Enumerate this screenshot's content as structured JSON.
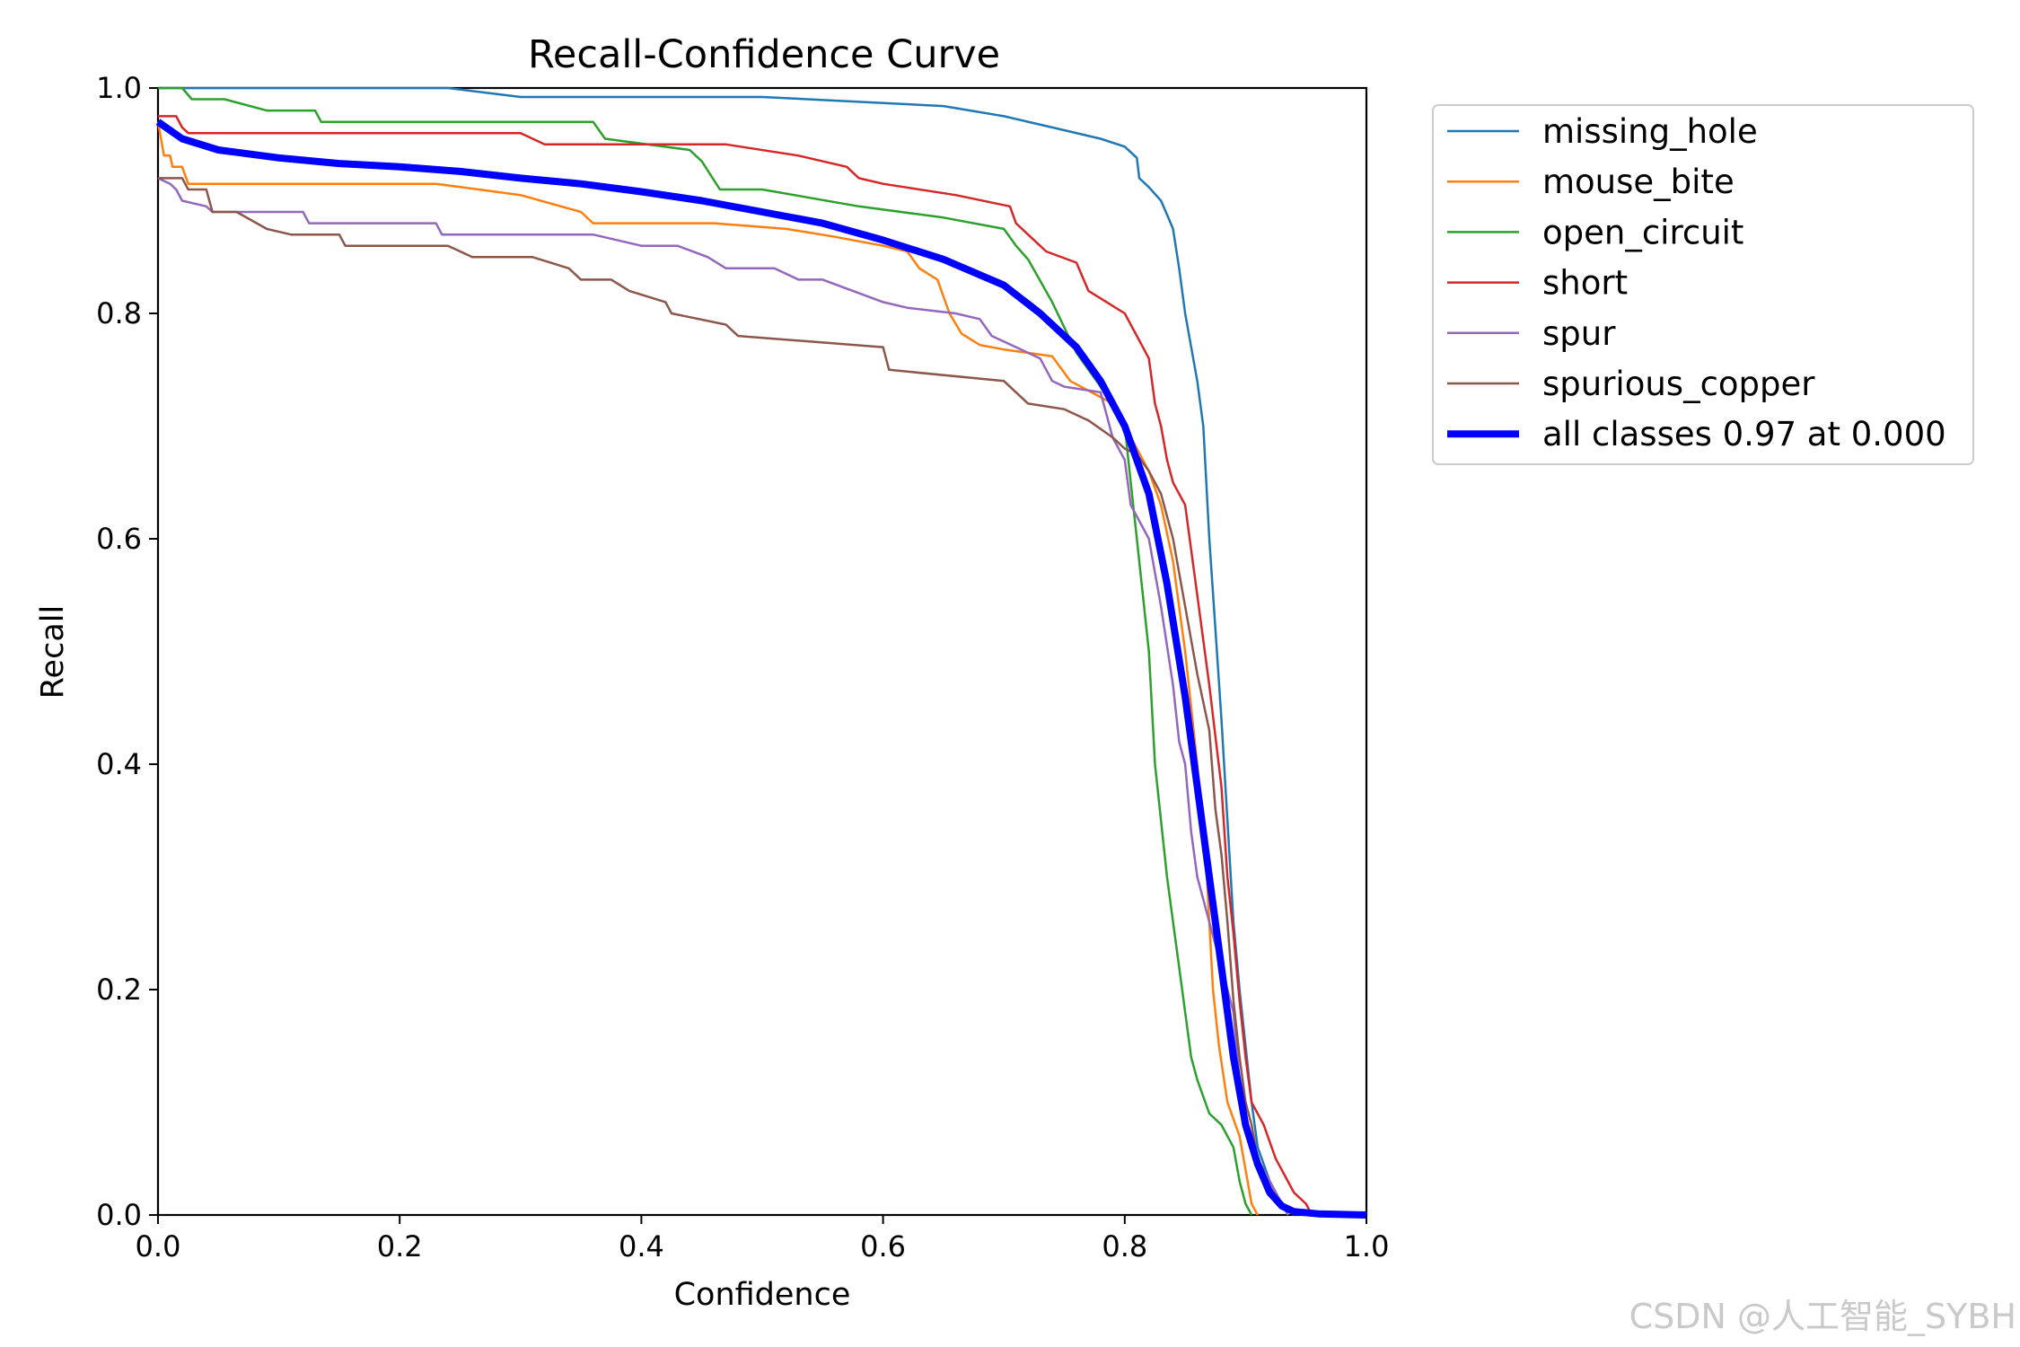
{
  "chart_data": {
    "type": "line",
    "title": "Recall-Confidence Curve",
    "xlabel": "Confidence",
    "ylabel": "Recall",
    "xlim": [
      0,
      1
    ],
    "ylim": [
      0,
      1
    ],
    "xticks": [
      "0.0",
      "0.2",
      "0.4",
      "0.6",
      "0.8",
      "1.0"
    ],
    "yticks": [
      "0.0",
      "0.2",
      "0.4",
      "0.6",
      "0.8",
      "1.0"
    ],
    "grid": false,
    "legend_position": "outside top-right",
    "series": [
      {
        "name": "missing_hole",
        "color": "#1f77b4",
        "width": 2.5,
        "points": [
          [
            0,
            1.0
          ],
          [
            0.24,
            1.0
          ],
          [
            0.3,
            0.992
          ],
          [
            0.5,
            0.992
          ],
          [
            0.65,
            0.984
          ],
          [
            0.7,
            0.975
          ],
          [
            0.74,
            0.965
          ],
          [
            0.78,
            0.955
          ],
          [
            0.8,
            0.948
          ],
          [
            0.81,
            0.938
          ],
          [
            0.812,
            0.92
          ],
          [
            0.82,
            0.912
          ],
          [
            0.83,
            0.9
          ],
          [
            0.836,
            0.885
          ],
          [
            0.84,
            0.875
          ],
          [
            0.845,
            0.84
          ],
          [
            0.85,
            0.8
          ],
          [
            0.86,
            0.74
          ],
          [
            0.865,
            0.7
          ],
          [
            0.87,
            0.6
          ],
          [
            0.875,
            0.52
          ],
          [
            0.88,
            0.44
          ],
          [
            0.885,
            0.35
          ],
          [
            0.89,
            0.26
          ],
          [
            0.895,
            0.2
          ],
          [
            0.9,
            0.15
          ],
          [
            0.905,
            0.1
          ],
          [
            0.91,
            0.06
          ],
          [
            0.92,
            0.03
          ],
          [
            0.93,
            0.01
          ],
          [
            0.94,
            0.004
          ],
          [
            0.96,
            0.002
          ],
          [
            1.0,
            0.0
          ]
        ]
      },
      {
        "name": "mouse_bite",
        "color": "#ff7f0e",
        "width": 2.5,
        "points": [
          [
            0,
            0.97
          ],
          [
            0.005,
            0.94
          ],
          [
            0.01,
            0.94
          ],
          [
            0.012,
            0.93
          ],
          [
            0.02,
            0.93
          ],
          [
            0.025,
            0.915
          ],
          [
            0.23,
            0.915
          ],
          [
            0.3,
            0.905
          ],
          [
            0.35,
            0.89
          ],
          [
            0.36,
            0.88
          ],
          [
            0.46,
            0.88
          ],
          [
            0.52,
            0.875
          ],
          [
            0.56,
            0.868
          ],
          [
            0.6,
            0.86
          ],
          [
            0.62,
            0.855
          ],
          [
            0.63,
            0.84
          ],
          [
            0.645,
            0.83
          ],
          [
            0.655,
            0.8
          ],
          [
            0.665,
            0.782
          ],
          [
            0.68,
            0.772
          ],
          [
            0.7,
            0.768
          ],
          [
            0.74,
            0.762
          ],
          [
            0.755,
            0.74
          ],
          [
            0.79,
            0.72
          ],
          [
            0.8,
            0.7
          ],
          [
            0.81,
            0.68
          ],
          [
            0.82,
            0.66
          ],
          [
            0.83,
            0.63
          ],
          [
            0.84,
            0.58
          ],
          [
            0.85,
            0.5
          ],
          [
            0.86,
            0.4
          ],
          [
            0.868,
            0.3
          ],
          [
            0.873,
            0.2
          ],
          [
            0.878,
            0.15
          ],
          [
            0.885,
            0.1
          ],
          [
            0.895,
            0.07
          ],
          [
            0.9,
            0.04
          ],
          [
            0.905,
            0.01
          ],
          [
            0.91,
            0.0
          ]
        ]
      },
      {
        "name": "open_circuit",
        "color": "#2ca02c",
        "width": 2.5,
        "points": [
          [
            0,
            1.0
          ],
          [
            0.02,
            1.0
          ],
          [
            0.028,
            0.99
          ],
          [
            0.055,
            0.99
          ],
          [
            0.09,
            0.98
          ],
          [
            0.13,
            0.98
          ],
          [
            0.135,
            0.97
          ],
          [
            0.36,
            0.97
          ],
          [
            0.37,
            0.955
          ],
          [
            0.44,
            0.945
          ],
          [
            0.45,
            0.935
          ],
          [
            0.465,
            0.91
          ],
          [
            0.5,
            0.91
          ],
          [
            0.58,
            0.895
          ],
          [
            0.65,
            0.885
          ],
          [
            0.7,
            0.875
          ],
          [
            0.71,
            0.86
          ],
          [
            0.72,
            0.848
          ],
          [
            0.74,
            0.81
          ],
          [
            0.76,
            0.765
          ],
          [
            0.78,
            0.735
          ],
          [
            0.8,
            0.7
          ],
          [
            0.805,
            0.65
          ],
          [
            0.81,
            0.6
          ],
          [
            0.815,
            0.55
          ],
          [
            0.82,
            0.5
          ],
          [
            0.825,
            0.4
          ],
          [
            0.83,
            0.35
          ],
          [
            0.835,
            0.3
          ],
          [
            0.84,
            0.26
          ],
          [
            0.845,
            0.22
          ],
          [
            0.85,
            0.18
          ],
          [
            0.855,
            0.14
          ],
          [
            0.86,
            0.12
          ],
          [
            0.87,
            0.09
          ],
          [
            0.88,
            0.08
          ],
          [
            0.89,
            0.06
          ],
          [
            0.895,
            0.03
          ],
          [
            0.9,
            0.01
          ],
          [
            0.905,
            0.0
          ]
        ]
      },
      {
        "name": "short",
        "color": "#d62728",
        "width": 2.5,
        "points": [
          [
            0,
            0.975
          ],
          [
            0.015,
            0.975
          ],
          [
            0.02,
            0.965
          ],
          [
            0.025,
            0.96
          ],
          [
            0.3,
            0.96
          ],
          [
            0.32,
            0.95
          ],
          [
            0.47,
            0.95
          ],
          [
            0.53,
            0.94
          ],
          [
            0.57,
            0.93
          ],
          [
            0.58,
            0.92
          ],
          [
            0.6,
            0.915
          ],
          [
            0.66,
            0.905
          ],
          [
            0.705,
            0.895
          ],
          [
            0.71,
            0.88
          ],
          [
            0.72,
            0.87
          ],
          [
            0.735,
            0.855
          ],
          [
            0.76,
            0.845
          ],
          [
            0.77,
            0.82
          ],
          [
            0.785,
            0.81
          ],
          [
            0.8,
            0.8
          ],
          [
            0.81,
            0.78
          ],
          [
            0.82,
            0.76
          ],
          [
            0.825,
            0.72
          ],
          [
            0.83,
            0.7
          ],
          [
            0.835,
            0.67
          ],
          [
            0.84,
            0.65
          ],
          [
            0.85,
            0.63
          ],
          [
            0.86,
            0.55
          ],
          [
            0.87,
            0.47
          ],
          [
            0.88,
            0.38
          ],
          [
            0.885,
            0.3
          ],
          [
            0.89,
            0.25
          ],
          [
            0.895,
            0.19
          ],
          [
            0.9,
            0.14
          ],
          [
            0.905,
            0.1
          ],
          [
            0.915,
            0.08
          ],
          [
            0.925,
            0.05
          ],
          [
            0.94,
            0.02
          ],
          [
            0.95,
            0.01
          ],
          [
            0.955,
            0.0
          ]
        ]
      },
      {
        "name": "spur",
        "color": "#9467bd",
        "width": 2.5,
        "points": [
          [
            0,
            0.92
          ],
          [
            0.01,
            0.915
          ],
          [
            0.015,
            0.91
          ],
          [
            0.02,
            0.9
          ],
          [
            0.04,
            0.895
          ],
          [
            0.045,
            0.89
          ],
          [
            0.12,
            0.89
          ],
          [
            0.125,
            0.88
          ],
          [
            0.23,
            0.88
          ],
          [
            0.235,
            0.87
          ],
          [
            0.36,
            0.87
          ],
          [
            0.4,
            0.86
          ],
          [
            0.43,
            0.86
          ],
          [
            0.455,
            0.85
          ],
          [
            0.47,
            0.84
          ],
          [
            0.51,
            0.84
          ],
          [
            0.53,
            0.83
          ],
          [
            0.55,
            0.83
          ],
          [
            0.6,
            0.81
          ],
          [
            0.62,
            0.805
          ],
          [
            0.66,
            0.8
          ],
          [
            0.68,
            0.795
          ],
          [
            0.69,
            0.78
          ],
          [
            0.71,
            0.77
          ],
          [
            0.73,
            0.76
          ],
          [
            0.74,
            0.74
          ],
          [
            0.75,
            0.735
          ],
          [
            0.78,
            0.73
          ],
          [
            0.79,
            0.69
          ],
          [
            0.8,
            0.67
          ],
          [
            0.805,
            0.63
          ],
          [
            0.82,
            0.6
          ],
          [
            0.83,
            0.54
          ],
          [
            0.84,
            0.47
          ],
          [
            0.845,
            0.42
          ],
          [
            0.85,
            0.4
          ],
          [
            0.855,
            0.34
          ],
          [
            0.86,
            0.3
          ],
          [
            0.87,
            0.26
          ],
          [
            0.88,
            0.22
          ],
          [
            0.89,
            0.18
          ],
          [
            0.895,
            0.12
          ],
          [
            0.9,
            0.08
          ],
          [
            0.91,
            0.05
          ],
          [
            0.92,
            0.03
          ],
          [
            0.93,
            0.01
          ],
          [
            0.935,
            0.0
          ]
        ]
      },
      {
        "name": "spurious_copper",
        "color": "#8c564b",
        "width": 2.5,
        "points": [
          [
            0,
            0.92
          ],
          [
            0.02,
            0.92
          ],
          [
            0.025,
            0.91
          ],
          [
            0.04,
            0.91
          ],
          [
            0.045,
            0.89
          ],
          [
            0.065,
            0.89
          ],
          [
            0.09,
            0.875
          ],
          [
            0.11,
            0.87
          ],
          [
            0.15,
            0.87
          ],
          [
            0.155,
            0.86
          ],
          [
            0.24,
            0.86
          ],
          [
            0.26,
            0.85
          ],
          [
            0.31,
            0.85
          ],
          [
            0.34,
            0.84
          ],
          [
            0.35,
            0.83
          ],
          [
            0.375,
            0.83
          ],
          [
            0.39,
            0.82
          ],
          [
            0.42,
            0.81
          ],
          [
            0.425,
            0.8
          ],
          [
            0.47,
            0.79
          ],
          [
            0.48,
            0.78
          ],
          [
            0.6,
            0.77
          ],
          [
            0.605,
            0.75
          ],
          [
            0.7,
            0.74
          ],
          [
            0.72,
            0.72
          ],
          [
            0.75,
            0.715
          ],
          [
            0.77,
            0.705
          ],
          [
            0.79,
            0.69
          ],
          [
            0.8,
            0.68
          ],
          [
            0.81,
            0.675
          ],
          [
            0.82,
            0.66
          ],
          [
            0.83,
            0.64
          ],
          [
            0.84,
            0.6
          ],
          [
            0.85,
            0.54
          ],
          [
            0.86,
            0.48
          ],
          [
            0.87,
            0.43
          ],
          [
            0.875,
            0.36
          ],
          [
            0.88,
            0.32
          ],
          [
            0.885,
            0.26
          ],
          [
            0.89,
            0.19
          ],
          [
            0.895,
            0.14
          ],
          [
            0.9,
            0.1
          ],
          [
            0.905,
            0.08
          ],
          [
            0.91,
            0.05
          ],
          [
            0.92,
            0.025
          ],
          [
            0.93,
            0.01
          ],
          [
            0.94,
            0.0
          ]
        ]
      },
      {
        "name": "all classes 0.97 at 0.000",
        "color": "#0000ff",
        "width": 8,
        "points": [
          [
            0,
            0.97
          ],
          [
            0.02,
            0.955
          ],
          [
            0.05,
            0.945
          ],
          [
            0.1,
            0.938
          ],
          [
            0.15,
            0.933
          ],
          [
            0.2,
            0.93
          ],
          [
            0.25,
            0.926
          ],
          [
            0.3,
            0.92
          ],
          [
            0.35,
            0.915
          ],
          [
            0.4,
            0.908
          ],
          [
            0.45,
            0.9
          ],
          [
            0.5,
            0.89
          ],
          [
            0.55,
            0.88
          ],
          [
            0.6,
            0.865
          ],
          [
            0.65,
            0.848
          ],
          [
            0.7,
            0.825
          ],
          [
            0.73,
            0.8
          ],
          [
            0.76,
            0.77
          ],
          [
            0.78,
            0.74
          ],
          [
            0.8,
            0.7
          ],
          [
            0.82,
            0.64
          ],
          [
            0.835,
            0.56
          ],
          [
            0.85,
            0.46
          ],
          [
            0.86,
            0.38
          ],
          [
            0.87,
            0.3
          ],
          [
            0.88,
            0.22
          ],
          [
            0.89,
            0.14
          ],
          [
            0.9,
            0.08
          ],
          [
            0.91,
            0.045
          ],
          [
            0.92,
            0.02
          ],
          [
            0.93,
            0.008
          ],
          [
            0.94,
            0.003
          ],
          [
            0.96,
            0.001
          ],
          [
            1.0,
            0.0
          ]
        ]
      }
    ]
  },
  "watermark": "CSDN @人工智能_SYBH"
}
